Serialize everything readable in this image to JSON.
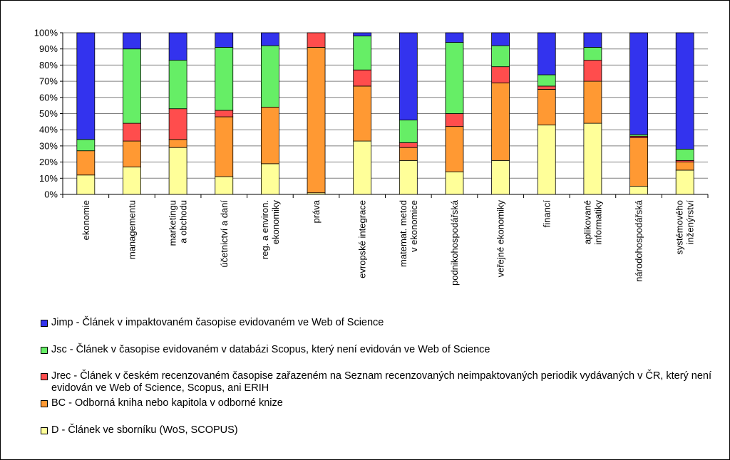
{
  "chart_data": {
    "type": "bar",
    "stacked": true,
    "normalized": true,
    "categories": [
      "ekonomie",
      "managementu",
      "marketingu a obchodu",
      "účetnictví a daní",
      "reg. a environ. ekonomiky",
      "práva",
      "evropské integrace",
      "matemat. metod v ekonomice",
      "podnikohospodářská",
      "veřejné ekonomiky",
      "financí",
      "aplikované informatiky",
      "národohospodářská",
      "systémového inženýrství"
    ],
    "category_lines": [
      [
        "ekonomie"
      ],
      [
        "managementu"
      ],
      [
        "marketingu",
        "a obchodu"
      ],
      [
        "účetnictví a daní"
      ],
      [
        "reg. a environ.",
        "ekonomiky"
      ],
      [
        "práva"
      ],
      [
        "evropské integrace"
      ],
      [
        "matemat. metod",
        "v ekonomice"
      ],
      [
        "podnikohospodářská"
      ],
      [
        "veřejné ekonomiky"
      ],
      [
        "financí"
      ],
      [
        "aplikované",
        "informatiky"
      ],
      [
        "národohospodářská"
      ],
      [
        "systémového",
        "inženýrství"
      ]
    ],
    "series": [
      {
        "name": "D - Článek ve sborníku (WoS, SCOPUS)",
        "color": "#ffff99",
        "values": [
          12,
          17,
          29,
          11,
          19,
          1,
          33,
          21,
          14,
          21,
          43,
          44,
          5,
          15
        ]
      },
      {
        "name": "BC - Odborná kniha nebo kapitola v odborné knize",
        "color": "#ff9933",
        "values": [
          15,
          16,
          5,
          37,
          35,
          90,
          34,
          8,
          28,
          48,
          22,
          26,
          30,
          5
        ]
      },
      {
        "name": "Jrec - Článek v českém recenzovaném časopise zařazeném na Seznam recenzovaných neimpaktovaných periodik vydávaných v ČR, který není evidován ve Web of Science, Scopus, ani ERIH",
        "color": "#ff4d4d",
        "values": [
          0,
          11,
          19,
          4,
          0,
          9,
          10,
          3,
          8,
          10,
          2,
          13,
          1,
          1
        ]
      },
      {
        "name": "Jsc - Článek v časopise evidovaném v databázi Scopus, který není evidován ve Web of Science",
        "color": "#66ee66",
        "values": [
          7,
          46,
          30,
          39,
          38,
          0,
          21,
          14,
          44,
          13,
          7,
          8,
          1,
          7
        ]
      },
      {
        "name": "Jimp - Článek v impaktovaném časopise evidovaném ve Web of Science",
        "color": "#3333ee",
        "values": [
          66,
          10,
          17,
          9,
          8,
          0,
          2,
          54,
          6,
          8,
          26,
          9,
          63,
          72
        ]
      }
    ],
    "legend_order": [
      "Jimp - Článek v impaktovaném časopise evidovaném ve Web of Science",
      "Jsc - Článek v časopise evidovaném v databázi Scopus, který není evidován ve Web of Science",
      "Jrec - Článek v českém recenzovaném časopise zařazeném na Seznam recenzovaných neimpaktovaných periodik vydávaných v ČR, který není evidován ve Web of Science, Scopus, ani ERIH",
      "BC - Odborná kniha nebo kapitola v odborné knize",
      "D - Článek ve sborníku (WoS, SCOPUS)"
    ],
    "legend_colors": [
      "#3333ee",
      "#66ee66",
      "#ff4d4d",
      "#ff9933",
      "#ffff99"
    ],
    "legend_position": "bottom",
    "ylim": [
      0,
      100
    ],
    "yticks": [
      "0%",
      "10%",
      "20%",
      "30%",
      "40%",
      "50%",
      "60%",
      "70%",
      "80%",
      "90%",
      "100%"
    ],
    "grid": true,
    "title": "",
    "xlabel": "",
    "ylabel": ""
  }
}
